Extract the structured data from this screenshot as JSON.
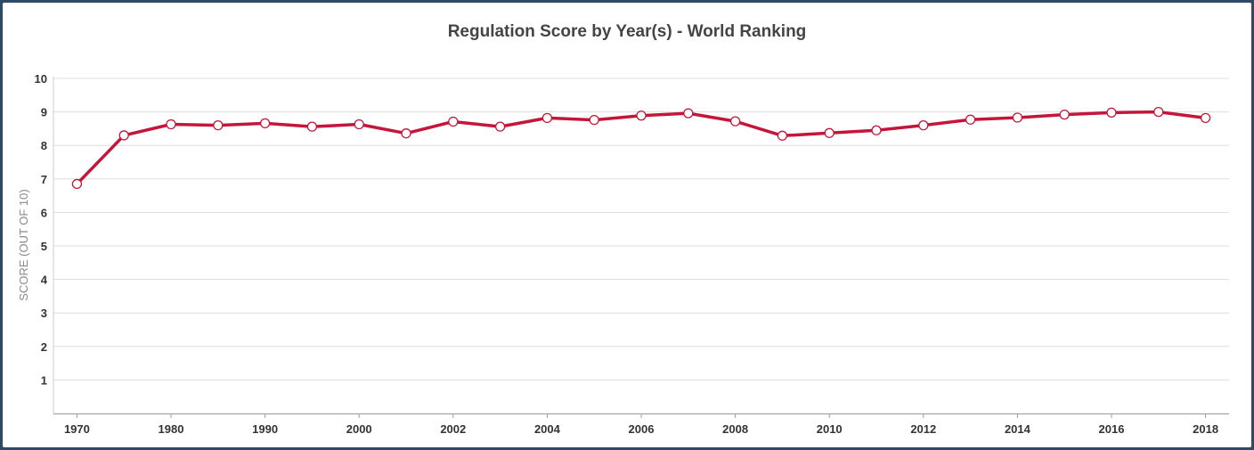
{
  "chart_data": {
    "type": "line",
    "title": "Regulation Score by Year(s) - World Ranking",
    "xlabel": "",
    "ylabel": "SCORE (OUT OF 10)",
    "ylim": [
      0,
      10
    ],
    "yticks": [
      "1",
      "2",
      "3",
      "4",
      "5",
      "6",
      "7",
      "8",
      "9",
      "10"
    ],
    "xtick_labels": [
      "1970",
      "1980",
      "1990",
      "2000",
      "2002",
      "2004",
      "2006",
      "2008",
      "2010",
      "2012",
      "2014",
      "2016",
      "2018"
    ],
    "x": [
      "1970",
      "1975",
      "1980",
      "1985",
      "1990",
      "1995",
      "2000",
      "2001",
      "2002",
      "2003",
      "2004",
      "2005",
      "2006",
      "2007",
      "2008",
      "2009",
      "2010",
      "2011",
      "2012",
      "2013",
      "2014",
      "2015",
      "2016",
      "2017",
      "2018"
    ],
    "series": [
      {
        "values": [
          6.85,
          8.3,
          8.63,
          8.6,
          8.66,
          8.56,
          8.63,
          8.36,
          8.71,
          8.56,
          8.82,
          8.76,
          8.89,
          8.96,
          8.72,
          8.29,
          8.37,
          8.45,
          8.6,
          8.77,
          8.83,
          8.92,
          8.98,
          9.0,
          8.82
        ],
        "color": "#c4163a"
      }
    ],
    "grid": true,
    "legend": "none"
  }
}
